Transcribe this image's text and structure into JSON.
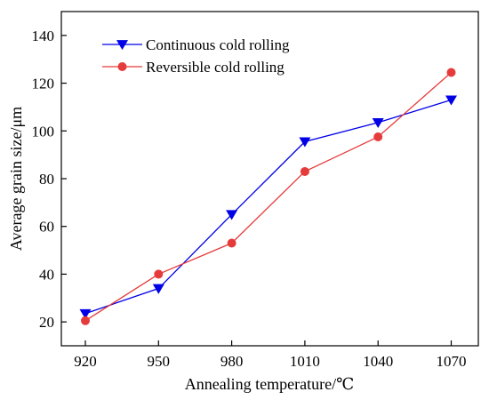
{
  "chart_data": {
    "type": "line",
    "x_title": "Annealing temperature/℃",
    "y_title": "Average grain size/μm",
    "categories": [
      "920",
      "950",
      "980",
      "1010",
      "1040",
      "1070"
    ],
    "y_ticks": [
      "20",
      "40",
      "60",
      "80",
      "100",
      "120",
      "140"
    ],
    "ylim": [
      10,
      150
    ],
    "legend_position": "top-left",
    "series": [
      {
        "name": "Continuous cold rolling",
        "values": [
          23.5,
          34,
          65,
          95.5,
          103.5,
          113
        ],
        "color": "#0000e6",
        "marker": "triangle-down"
      },
      {
        "name": "Reversible cold rolling",
        "values": [
          20.5,
          40,
          53,
          83,
          97.5,
          124.5
        ],
        "color": "#e63b3b",
        "marker": "circle"
      }
    ]
  }
}
